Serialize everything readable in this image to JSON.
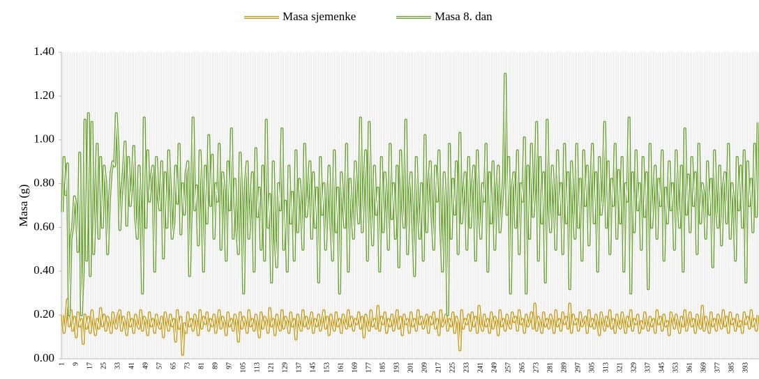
{
  "chart_data": {
    "type": "line",
    "y_label": "Masa (g)",
    "ylim": [
      0,
      1.4
    ],
    "yticks": [
      {
        "value": 0,
        "label": "0.00"
      },
      {
        "value": 0.2,
        "label": "0.20"
      },
      {
        "value": 0.4,
        "label": "0.40"
      },
      {
        "value": 0.6,
        "label": "0.60"
      },
      {
        "value": 0.8,
        "label": "0.80"
      },
      {
        "value": 1.0,
        "label": "1.00"
      },
      {
        "value": 1.2,
        "label": "1.20"
      },
      {
        "value": 1.4,
        "label": "1.40"
      }
    ],
    "x_grid": true,
    "legend": "top",
    "categories": [
      1,
      null,
      null,
      null,
      null,
      null,
      null,
      null,
      9,
      null,
      null,
      null,
      null,
      null,
      null,
      null,
      17,
      null,
      null,
      null,
      null,
      null,
      null,
      null,
      25,
      null,
      null,
      null,
      null,
      null,
      null,
      null,
      33,
      null,
      null,
      null,
      null,
      null,
      null,
      null,
      41,
      null,
      null,
      null,
      null,
      null,
      null,
      null,
      49,
      null,
      null,
      null,
      null,
      null,
      null,
      null,
      57,
      null,
      null,
      null,
      null,
      null,
      null,
      null,
      65,
      null,
      null,
      null,
      null,
      null,
      null,
      null,
      73,
      null,
      null,
      null,
      null,
      null,
      null,
      null,
      81,
      null,
      null,
      null,
      null,
      null,
      null,
      null,
      89,
      null,
      null,
      null,
      null,
      null,
      null,
      null,
      97,
      null,
      null,
      null,
      null,
      null,
      null,
      null,
      105,
      null,
      null,
      null,
      null,
      null,
      null,
      null,
      113,
      null,
      null,
      null,
      null,
      null,
      null,
      null,
      121,
      null,
      null,
      null,
      null,
      null,
      null,
      null,
      129,
      null,
      null,
      null,
      null,
      null,
      null,
      null,
      137,
      null,
      null,
      null,
      null,
      null,
      null,
      null,
      145,
      null,
      null,
      null,
      null,
      null,
      null,
      null,
      153,
      null,
      null,
      null,
      null,
      null,
      null,
      null,
      161,
      null,
      null,
      null,
      null,
      null,
      null,
      null,
      169,
      null,
      null,
      null,
      null,
      null,
      null,
      null,
      177,
      null,
      null,
      null,
      null,
      null,
      null,
      null,
      185,
      null,
      null,
      null,
      null,
      null,
      null,
      null,
      193,
      null,
      null,
      null,
      null,
      null,
      null,
      null,
      201,
      null,
      null,
      null,
      null,
      null,
      null,
      null,
      209,
      null,
      null,
      null,
      null,
      null,
      null,
      null,
      217,
      null,
      null,
      null,
      null,
      null,
      null,
      null,
      225,
      null,
      null,
      null,
      null,
      null,
      null,
      null,
      233,
      null,
      null,
      null,
      null,
      null,
      null,
      null,
      241,
      null,
      null,
      null,
      null,
      null,
      null,
      null,
      249,
      null,
      null,
      null,
      null,
      null,
      null,
      null,
      257,
      null,
      null,
      null,
      null,
      null,
      null,
      null,
      265,
      null,
      null,
      null,
      null,
      null,
      null,
      null,
      273,
      null,
      null,
      null,
      null,
      null,
      null,
      null,
      281,
      null,
      null,
      null,
      null,
      null,
      null,
      null,
      289,
      null,
      null,
      null,
      null,
      null,
      null,
      null,
      297,
      null,
      null,
      null,
      null,
      null,
      null,
      null,
      305,
      null,
      null,
      null,
      null,
      null,
      null,
      null,
      313,
      null,
      null,
      null,
      null,
      null,
      null,
      null,
      321,
      null,
      null,
      null,
      null,
      null,
      null,
      null,
      329,
      null,
      null,
      null,
      null,
      null,
      null,
      null,
      337,
      null,
      null,
      null,
      null,
      null,
      null,
      null,
      345,
      null,
      null,
      null,
      null,
      null,
      null,
      null,
      353,
      null,
      null,
      null,
      null,
      null,
      null,
      null,
      361,
      null,
      null,
      null,
      null,
      null,
      null,
      null,
      369,
      null,
      null,
      null,
      null,
      null,
      null,
      null,
      377,
      null,
      null,
      null,
      null,
      null,
      null,
      null,
      385,
      null,
      null,
      null,
      null,
      null,
      null,
      null,
      393,
      null,
      null,
      null,
      null,
      null,
      null,
      null
    ],
    "series": [
      {
        "name": "Masa sjemenke",
        "color": "#c99a1a",
        "values": [
          0.2,
          0.12,
          0.18,
          0.27,
          0.15,
          0.22,
          0.13,
          0.19,
          0.1,
          0.21,
          0.15,
          0.18,
          0.07,
          0.2,
          0.14,
          0.19,
          0.12,
          0.22,
          0.16,
          0.11,
          0.18,
          0.14,
          0.23,
          0.15,
          0.2,
          0.13,
          0.19,
          0.16,
          0.12,
          0.21,
          0.17,
          0.14,
          0.2,
          0.22,
          0.13,
          0.19,
          0.16,
          0.11,
          0.21,
          0.15,
          0.18,
          0.12,
          0.2,
          0.16,
          0.14,
          0.22,
          0.13,
          0.19,
          0.17,
          0.11,
          0.21,
          0.15,
          0.18,
          0.12,
          0.2,
          0.16,
          0.14,
          0.19,
          0.1,
          0.21,
          0.17,
          0.13,
          0.2,
          0.15,
          0.18,
          0.08,
          0.22,
          0.14,
          0.19,
          0.02,
          0.16,
          0.12,
          0.21,
          0.15,
          0.18,
          0.13,
          0.2,
          0.17,
          0.11,
          0.22,
          0.14,
          0.19,
          0.16,
          0.21,
          0.13,
          0.18,
          0.15,
          0.2,
          0.12,
          0.17,
          0.22,
          0.14,
          0.19,
          0.16,
          0.11,
          0.21,
          0.15,
          0.18,
          0.13,
          0.2,
          0.17,
          0.08,
          0.21,
          0.14,
          0.19,
          0.16,
          0.12,
          0.22,
          0.15,
          0.18,
          0.13,
          0.2,
          0.16,
          0.1,
          0.21,
          0.14,
          0.19,
          0.17,
          0.12,
          0.23,
          0.15,
          0.18,
          0.11,
          0.2,
          0.16,
          0.13,
          0.22,
          0.14,
          0.19,
          0.17,
          0.12,
          0.21,
          0.15,
          0.18,
          0.09,
          0.2,
          0.16,
          0.13,
          0.22,
          0.15,
          0.19,
          0.14,
          0.17,
          0.21,
          0.12,
          0.18,
          0.15,
          0.2,
          0.13,
          0.17,
          0.22,
          0.14,
          0.19,
          0.11,
          0.2,
          0.16,
          0.13,
          0.21,
          0.15,
          0.18,
          0.12,
          0.2,
          0.17,
          0.14,
          0.22,
          0.15,
          0.19,
          0.13,
          0.18,
          0.16,
          0.21,
          0.14,
          0.19,
          0.1,
          0.2,
          0.16,
          0.13,
          0.22,
          0.15,
          0.18,
          0.14,
          0.24,
          0.13,
          0.19,
          0.16,
          0.21,
          0.12,
          0.18,
          0.15,
          0.2,
          0.13,
          0.17,
          0.22,
          0.14,
          0.19,
          0.11,
          0.2,
          0.16,
          0.18,
          0.12,
          0.21,
          0.15,
          0.18,
          0.13,
          0.22,
          0.16,
          0.19,
          0.14,
          0.17,
          0.2,
          0.12,
          0.19,
          0.16,
          0.21,
          0.14,
          0.18,
          0.11,
          0.22,
          0.15,
          0.17,
          0.2,
          0.13,
          0.18,
          0.15,
          0.21,
          0.12,
          0.19,
          0.16,
          0.04,
          0.22,
          0.14,
          0.18,
          0.16,
          0.2,
          0.13,
          0.21,
          0.15,
          0.19,
          0.12,
          0.24,
          0.16,
          0.13,
          0.2,
          0.15,
          0.18,
          0.12,
          0.21,
          0.14,
          0.19,
          0.17,
          0.11,
          0.22,
          0.15,
          0.18,
          0.13,
          0.2,
          0.16,
          0.14,
          0.21,
          0.17,
          0.19,
          0.13,
          0.22,
          0.16,
          0.18,
          0.12,
          0.2,
          0.15,
          0.17,
          0.21,
          0.14,
          0.25,
          0.13,
          0.19,
          0.16,
          0.12,
          0.21,
          0.15,
          0.18,
          0.14,
          0.2,
          0.17,
          0.12,
          0.22,
          0.15,
          0.18,
          0.13,
          0.21,
          0.16,
          0.19,
          0.14,
          0.25,
          0.12,
          0.2,
          0.16,
          0.18,
          0.13,
          0.21,
          0.15,
          0.17,
          0.19,
          0.12,
          0.22,
          0.15,
          0.18,
          0.14,
          0.2,
          0.16,
          0.11,
          0.21,
          0.17,
          0.13,
          0.19,
          0.15,
          0.22,
          0.14,
          0.18,
          0.12,
          0.2,
          0.16,
          0.14,
          0.21,
          0.17,
          0.12,
          0.19,
          0.15,
          0.22,
          0.13,
          0.18,
          0.16,
          0.2,
          0.12,
          0.17,
          0.14,
          0.21,
          0.16,
          0.13,
          0.19,
          0.15,
          0.18,
          0.12,
          0.22,
          0.16,
          0.19,
          0.13,
          0.2,
          0.15,
          0.17,
          0.11,
          0.21,
          0.18,
          0.14,
          0.2,
          0.16,
          0.12,
          0.19,
          0.15,
          0.22,
          0.13,
          0.17,
          0.21,
          0.15,
          0.18,
          0.12,
          0.2,
          0.16,
          0.14,
          0.24,
          0.13,
          0.19,
          0.16,
          0.12,
          0.21,
          0.15,
          0.18,
          0.13,
          0.2,
          0.17,
          0.14,
          0.22,
          0.15,
          0.19,
          0.12,
          0.21,
          0.16,
          0.18,
          0.13,
          0.2,
          0.15,
          0.17,
          0.12,
          0.21,
          0.16,
          0.19,
          0.14,
          0.22,
          0.15,
          0.18,
          0.13,
          0.2
        ]
      },
      {
        "name": "Masa 8. dan",
        "color": "#6aa533",
        "values": [
          0.67,
          0.92,
          0.75,
          0.89,
          0.2,
          0.55,
          0.6,
          0.74,
          0.7,
          0.49,
          0.94,
          0.2,
          0.4,
          1.09,
          0.45,
          1.12,
          0.38,
          1.08,
          0.48,
          0.7,
          0.98,
          0.55,
          0.92,
          0.6,
          0.88,
          0.8,
          0.48,
          0.72,
          0.85,
          0.9,
          0.88,
          1.12,
          0.95,
          0.59,
          0.75,
          0.85,
          0.99,
          0.61,
          0.92,
          0.7,
          0.8,
          0.97,
          0.65,
          0.55,
          0.88,
          0.68,
          0.3,
          1.1,
          0.6,
          0.95,
          0.72,
          0.83,
          0.88,
          0.4,
          0.92,
          0.75,
          0.68,
          0.9,
          0.46,
          0.85,
          0.6,
          0.95,
          0.78,
          0.55,
          0.62,
          0.88,
          0.71,
          0.98,
          0.57,
          0.8,
          0.66,
          0.85,
          0.9,
          0.38,
          0.7,
          1.1,
          0.68,
          0.79,
          0.52,
          0.95,
          0.75,
          0.4,
          0.88,
          0.62,
          1.02,
          0.7,
          0.93,
          0.55,
          0.8,
          0.72,
          0.98,
          0.5,
          0.85,
          0.76,
          0.45,
          0.9,
          0.68,
          1.05,
          0.55,
          0.82,
          0.6,
          0.48,
          0.94,
          0.72,
          0.3,
          0.8,
          0.9,
          0.55,
          0.7,
          0.85,
          0.4,
          0.96,
          0.65,
          0.78,
          0.5,
          0.88,
          0.45,
          1.09,
          0.6,
          0.75,
          0.35,
          0.9,
          0.55,
          0.42,
          0.8,
          0.68,
          1.05,
          0.5,
          0.72,
          0.4,
          0.88,
          0.62,
          0.76,
          0.45,
          0.95,
          0.58,
          0.82,
          0.7,
          0.5,
          0.98,
          0.65,
          0.75,
          0.9,
          0.55,
          0.85,
          0.6,
          0.78,
          0.35,
          0.92,
          0.66,
          0.8,
          0.5,
          0.7,
          0.88,
          0.62,
          0.45,
          0.95,
          0.58,
          0.78,
          0.3,
          0.85,
          0.72,
          0.6,
          0.98,
          0.4,
          0.82,
          0.68,
          0.55,
          0.9,
          0.75,
          0.62,
          1.1,
          0.58,
          0.8,
          0.95,
          0.45,
          1.08,
          0.7,
          0.52,
          0.88,
          0.66,
          0.78,
          0.4,
          0.92,
          0.58,
          0.85,
          0.72,
          0.5,
          0.98,
          0.64,
          0.8,
          0.55,
          0.88,
          0.42,
          0.95,
          0.7,
          0.6,
          1.09,
          0.48,
          0.75,
          0.85,
          0.62,
          0.38,
          0.92,
          0.7,
          0.55,
          0.8,
          0.45,
          1.02,
          0.58,
          0.78,
          0.9,
          0.65,
          0.5,
          0.88,
          0.72,
          0.95,
          0.6,
          0.4,
          0.85,
          0.7,
          0.2,
          0.98,
          0.55,
          0.82,
          0.66,
          0.9,
          0.48,
          1.03,
          0.62,
          0.75,
          0.85,
          0.5,
          0.92,
          0.6,
          0.78,
          0.88,
          0.45,
          0.95,
          0.68,
          0.55,
          0.8,
          0.72,
          0.98,
          0.4,
          0.85,
          0.62,
          0.9,
          0.5,
          0.76,
          0.88,
          0.58,
          0.7,
          0.82,
          1.3,
          0.66,
          0.92,
          0.3,
          0.78,
          0.85,
          0.6,
          0.95,
          0.48,
          0.8,
          0.72,
          1.01,
          0.3,
          0.88,
          0.55,
          0.98,
          0.65,
          0.78,
          1.08,
          0.45,
          0.92,
          0.62,
          0.85,
          0.35,
          1.09,
          0.7,
          0.58,
          0.88,
          0.75,
          0.5,
          0.95,
          0.66,
          0.8,
          0.48,
          0.98,
          0.62,
          0.85,
          0.32,
          0.9,
          0.72,
          0.55,
          0.98,
          0.6,
          0.82,
          0.45,
          0.95,
          0.7,
          0.88,
          0.52,
          0.78,
          0.98,
          0.62,
          0.85,
          0.4,
          0.92,
          0.66,
          0.75,
          1.08,
          0.6,
          0.9,
          0.48,
          0.82,
          0.7,
          0.98,
          0.55,
          0.86,
          0.62,
          0.92,
          0.4,
          0.8,
          0.72,
          1.1,
          0.3,
          0.85,
          0.58,
          0.95,
          0.68,
          0.8,
          0.5,
          0.92,
          0.65,
          0.85,
          0.32,
          0.98,
          0.6,
          0.75,
          0.88,
          0.55,
          0.82,
          0.7,
          0.95,
          0.45,
          0.78,
          0.62,
          0.9,
          0.68,
          0.8,
          0.5,
          0.95,
          0.72,
          0.6,
          0.88,
          0.4,
          1.05,
          0.66,
          0.84,
          0.58,
          0.92,
          0.7,
          0.85,
          0.48,
          0.98,
          0.62,
          0.8,
          0.75,
          0.55,
          0.9,
          0.66,
          0.82,
          0.42,
          0.95,
          0.7,
          0.6,
          0.88,
          0.52,
          0.78,
          0.85,
          0.62,
          0.98,
          0.55,
          0.8,
          0.72,
          0.45,
          0.92,
          0.68,
          0.88,
          0.6,
          0.95,
          0.35,
          0.9,
          0.7,
          0.82,
          0.58,
          0.98,
          0.65,
          1.08
        ]
      }
    ]
  }
}
